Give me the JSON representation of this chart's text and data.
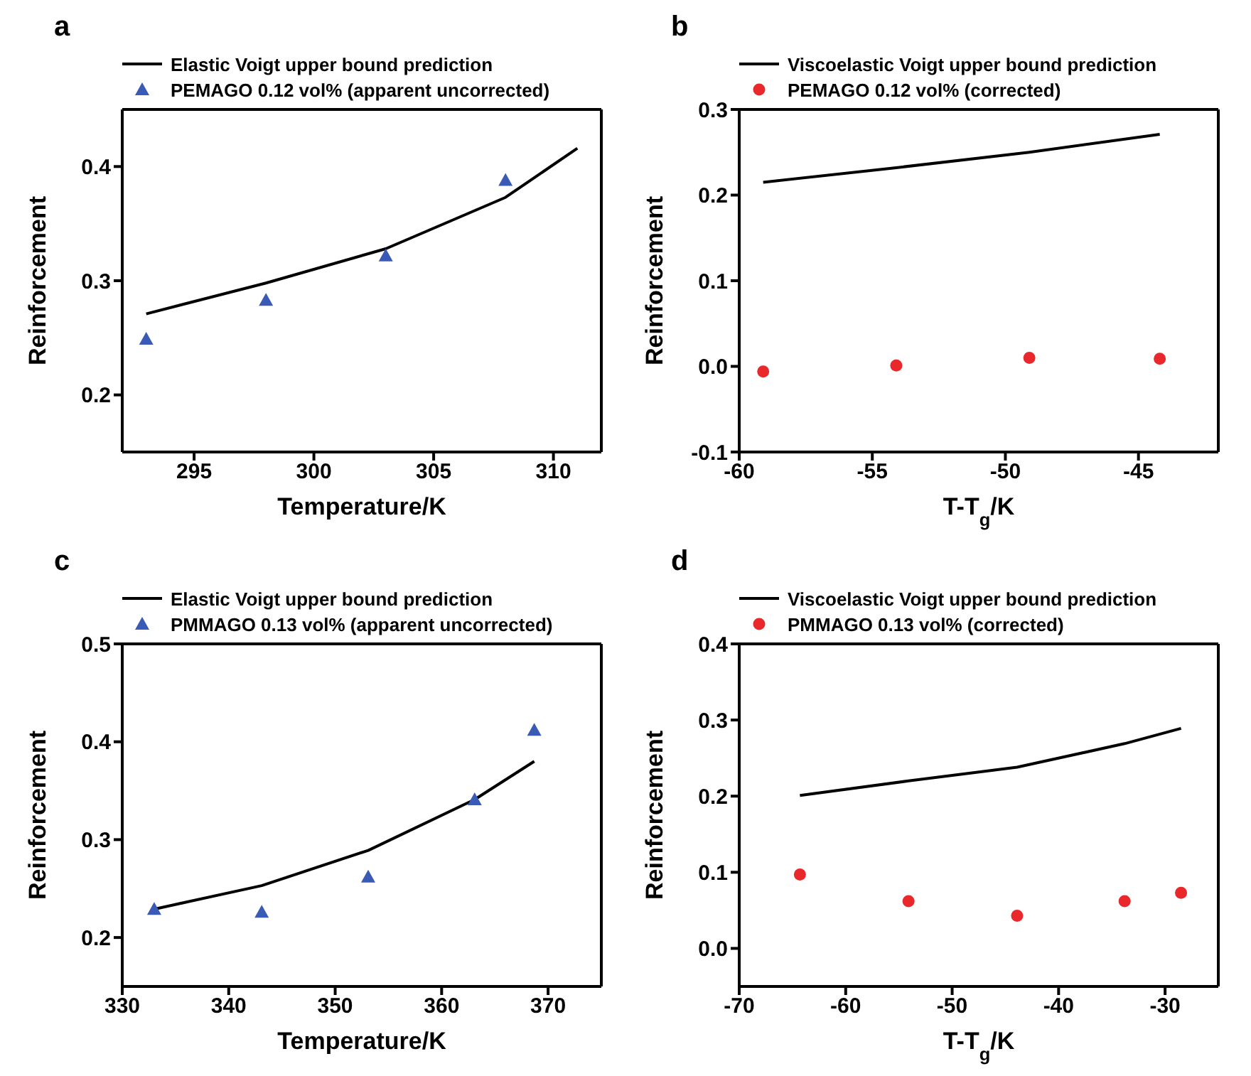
{
  "chart_data": [
    {
      "type": "scatter",
      "title": "a",
      "xlabel": "Temperature/K",
      "ylabel": "Reinforcement",
      "xlim": [
        292,
        312
      ],
      "xticks": [
        295,
        300,
        305,
        310
      ],
      "ylim": [
        0.15,
        0.45
      ],
      "yticks": [
        0.2,
        0.3,
        0.4
      ],
      "legend": "top",
      "series": [
        {
          "name": "Elastic Voigt upper bound prediction",
          "type": "line",
          "color": "#000000",
          "line_style": "solid",
          "marker": "none",
          "x": [
            293,
            298,
            303,
            308,
            311
          ],
          "values": [
            0.271,
            0.298,
            0.328,
            0.373,
            0.416
          ]
        },
        {
          "name": "PEMAGO 0.12 vol% (apparent uncorrected)",
          "color": "#3a5bb5",
          "marker": "triangle",
          "x": [
            293,
            298,
            303,
            308
          ],
          "values": [
            0.249,
            0.283,
            0.322,
            0.388
          ]
        }
      ]
    },
    {
      "type": "scatter",
      "title": "b",
      "xlabel": "T-T$_{g}$/K",
      "ylabel": "Reinforcement",
      "xlim": [
        -60,
        -42
      ],
      "xticks": [
        -60,
        -55,
        -50,
        -45
      ],
      "ylim": [
        -0.1,
        0.3
      ],
      "yticks": [
        -0.1,
        {
          "value": 0,
          "label": "0.0"
        },
        0.1,
        0.2,
        0.3
      ],
      "legend": "top",
      "series": [
        {
          "name": "Viscoelastic Voigt upper bound prediction",
          "type": "line",
          "color": "#000000",
          "line_style": "solid",
          "marker": "none",
          "x": [
            -59.1,
            -54.1,
            -49.1,
            -44.2
          ],
          "values": [
            0.215,
            0.232,
            0.25,
            0.271
          ]
        },
        {
          "name": "PEMAGO 0.12 vol% (corrected)",
          "color": "#e8282a",
          "marker": "circle",
          "x": [
            -59.1,
            -54.1,
            -49.1,
            -44.2
          ],
          "values": [
            -0.006,
            0.001,
            0.01,
            0.009
          ]
        }
      ]
    },
    {
      "type": "scatter",
      "title": "c",
      "xlabel": "Temperature/K",
      "ylabel": "Reinforcement",
      "xlim": [
        330,
        375
      ],
      "xticks": [
        330,
        340,
        350,
        360,
        370
      ],
      "ylim": [
        0.15,
        0.5
      ],
      "yticks": [
        0.2,
        0.3,
        0.4,
        0.5
      ],
      "legend": "top",
      "series": [
        {
          "name": "Elastic Voigt upper bound prediction",
          "type": "line",
          "color": "#000000",
          "line_style": "solid",
          "marker": "none",
          "x": [
            333,
            343.1,
            353.1,
            363.1,
            368.7
          ],
          "values": [
            0.229,
            0.253,
            0.289,
            0.341,
            0.38
          ]
        },
        {
          "name": "PMMAGO 0.13 vol% (apparent uncorrected)",
          "color": "#3a5bb5",
          "marker": "triangle",
          "x": [
            333,
            343.1,
            353.1,
            363.1,
            368.7
          ],
          "values": [
            0.229,
            0.226,
            0.262,
            0.341,
            0.412
          ]
        }
      ]
    },
    {
      "type": "scatter",
      "title": "d",
      "xlabel": "T-T$_{g}$/K",
      "ylabel": "Reinforcement",
      "xlim": [
        -70,
        -25
      ],
      "xticks": [
        -70,
        -60,
        -50,
        -40,
        -30
      ],
      "ylim": [
        -0.05,
        0.4
      ],
      "yticks": [
        {
          "value": 0,
          "label": "0.0"
        },
        0.1,
        0.2,
        0.3,
        0.4
      ],
      "legend": "top",
      "series": [
        {
          "name": "Viscoelastic Voigt upper bound prediction",
          "type": "line",
          "color": "#000000",
          "line_style": "solid",
          "marker": "none",
          "x": [
            -64.3,
            -54.1,
            -43.9,
            -33.8,
            -28.5
          ],
          "values": [
            0.201,
            0.22,
            0.238,
            0.269,
            0.289
          ]
        },
        {
          "name": "PMMAGO 0.13 vol% (corrected)",
          "color": "#e8282a",
          "marker": "circle",
          "x": [
            -64.3,
            -54.1,
            -43.9,
            -33.8,
            -28.5
          ],
          "values": [
            0.097,
            0.062,
            0.043,
            0.062,
            0.073
          ]
        }
      ]
    }
  ]
}
